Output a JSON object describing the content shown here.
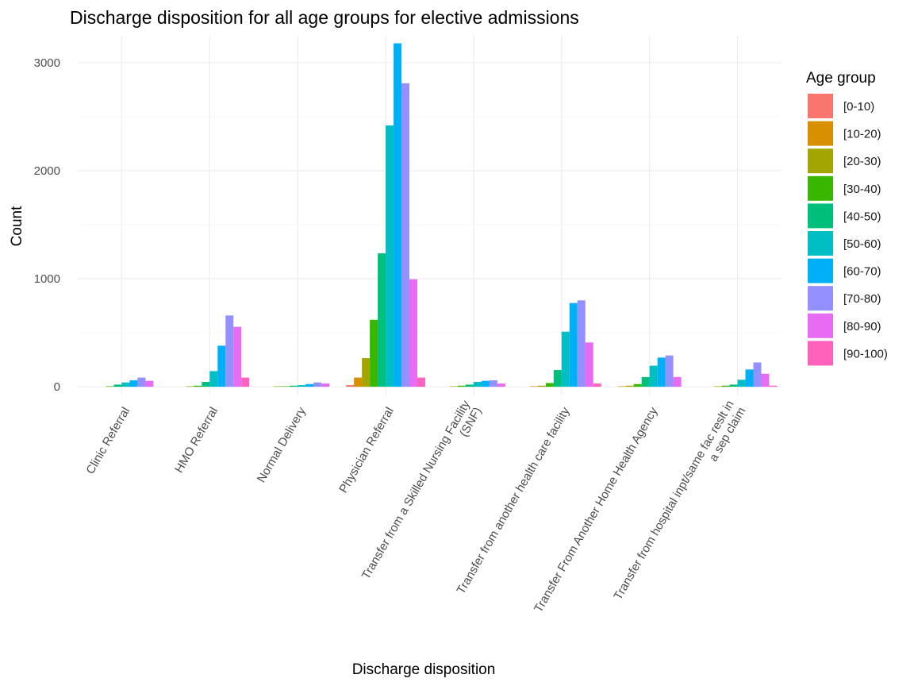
{
  "chart_data": {
    "type": "bar",
    "title": "Discharge disposition for all age groups for elective admissions",
    "xlabel": "Discharge disposition",
    "ylabel": "Count",
    "ylim": [
      -80,
      3250
    ],
    "yticks": [
      0,
      1000,
      2000,
      3000
    ],
    "grid": true,
    "legend_position": "right",
    "legend_title": "Age group",
    "categories": [
      [
        "Clinic Referral"
      ],
      [
        "HMO Referral"
      ],
      [
        "Normal Delivery"
      ],
      [
        "Physician Referral"
      ],
      [
        "Transfer from a Skilled Nursing Facility",
        "(SNF)"
      ],
      [
        "Transfer from another health care facility"
      ],
      [
        "Transfer From Another Home Health Agency"
      ],
      [
        "Transfer from hospital inpt/same fac reslt in",
        "a sep claim"
      ]
    ],
    "series": [
      {
        "name": "[0-10)",
        "color": "#F8766D",
        "values": [
          0,
          0,
          0,
          15,
          0,
          0,
          0,
          0
        ]
      },
      {
        "name": "[10-20)",
        "color": "#D89000",
        "values": [
          0,
          0,
          0,
          85,
          0,
          5,
          5,
          0
        ]
      },
      {
        "name": "[20-30)",
        "color": "#A3A500",
        "values": [
          0,
          5,
          5,
          265,
          5,
          10,
          10,
          5
        ]
      },
      {
        "name": "[30-40)",
        "color": "#39B600",
        "values": [
          5,
          10,
          5,
          620,
          10,
          35,
          25,
          10
        ]
      },
      {
        "name": "[40-50)",
        "color": "#00BF7D",
        "values": [
          20,
          45,
          10,
          1235,
          20,
          155,
          90,
          20
        ]
      },
      {
        "name": "[50-60)",
        "color": "#00BFC4",
        "values": [
          40,
          145,
          15,
          2420,
          45,
          510,
          195,
          65
        ]
      },
      {
        "name": "[60-70)",
        "color": "#00B0F6",
        "values": [
          60,
          380,
          25,
          3180,
          55,
          775,
          270,
          160
        ]
      },
      {
        "name": "[70-80)",
        "color": "#9590FF",
        "values": [
          85,
          660,
          40,
          2810,
          60,
          800,
          290,
          225
        ]
      },
      {
        "name": "[80-90)",
        "color": "#E76BF3",
        "values": [
          55,
          555,
          30,
          995,
          30,
          410,
          90,
          120
        ]
      },
      {
        "name": "[90-100)",
        "color": "#FF62BC",
        "values": [
          0,
          85,
          0,
          85,
          0,
          30,
          0,
          10
        ]
      }
    ]
  }
}
